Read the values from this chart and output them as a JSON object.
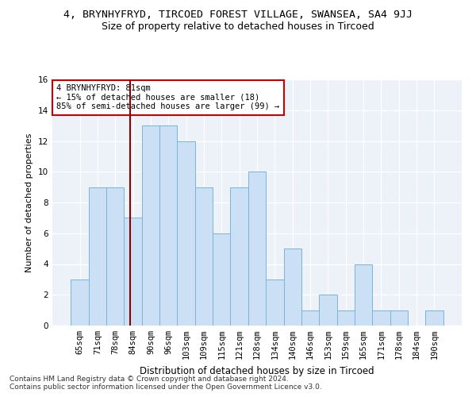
{
  "title1": "4, BRYNHYFRYD, TIRCOED FOREST VILLAGE, SWANSEA, SA4 9JJ",
  "title2": "Size of property relative to detached houses in Tircoed",
  "xlabel": "Distribution of detached houses by size in Tircoed",
  "ylabel": "Number of detached properties",
  "categories": [
    "65sqm",
    "71sqm",
    "78sqm",
    "84sqm",
    "90sqm",
    "96sqm",
    "103sqm",
    "109sqm",
    "115sqm",
    "121sqm",
    "128sqm",
    "134sqm",
    "140sqm",
    "146sqm",
    "153sqm",
    "159sqm",
    "165sqm",
    "171sqm",
    "178sqm",
    "184sqm",
    "190sqm"
  ],
  "values": [
    3,
    9,
    9,
    7,
    13,
    13,
    12,
    9,
    6,
    9,
    10,
    3,
    5,
    1,
    2,
    1,
    4,
    1,
    1,
    0,
    1
  ],
  "bar_color": "#cce0f5",
  "bar_edge_color": "#7ab4d8",
  "vline_color": "#8b0000",
  "vline_x_index": 2.82,
  "annotation_text": "4 BRYNHYFRYD: 81sqm\n← 15% of detached houses are smaller (18)\n85% of semi-detached houses are larger (99) →",
  "annotation_box_color": "#ffffff",
  "annotation_border_color": "#cc0000",
  "ylim": [
    0,
    16
  ],
  "yticks": [
    0,
    2,
    4,
    6,
    8,
    10,
    12,
    14,
    16
  ],
  "footer1": "Contains HM Land Registry data © Crown copyright and database right 2024.",
  "footer2": "Contains public sector information licensed under the Open Government Licence v3.0.",
  "background_color": "#edf2f9",
  "title1_fontsize": 9.5,
  "title2_fontsize": 9,
  "xlabel_fontsize": 8.5,
  "ylabel_fontsize": 8,
  "tick_fontsize": 7.5,
  "ann_fontsize": 7.5,
  "footer_fontsize": 6.5
}
